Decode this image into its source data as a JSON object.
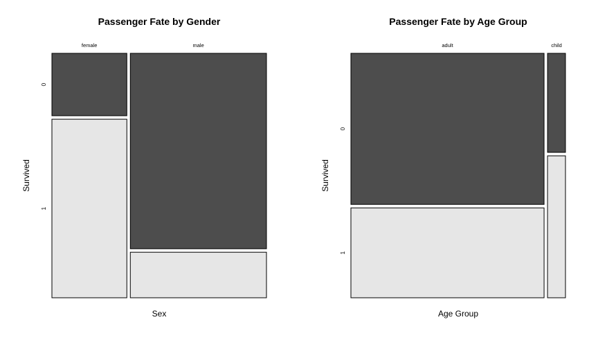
{
  "chart_data": [
    {
      "type": "mosaic",
      "title": "Passenger Fate by Gender",
      "xlabel": "Sex",
      "ylabel": "Survived",
      "categories": [
        "female",
        "male"
      ],
      "levels": [
        "0",
        "1"
      ],
      "column_share": [
        0.355,
        0.645
      ],
      "conditional_share": {
        "female": [
          0.259,
          0.741
        ],
        "male": [
          0.811,
          0.189
        ]
      },
      "colors": {
        "0": "#4d4d4d",
        "1": "#e6e6e6"
      }
    },
    {
      "type": "mosaic",
      "title": "Passenger Fate by Age Group",
      "xlabel": "Age Group",
      "ylabel": "Survived",
      "categories": [
        "adult",
        "child"
      ],
      "levels": [
        "0",
        "1"
      ],
      "column_share": [
        0.915,
        0.085
      ],
      "conditional_share": {
        "adult": [
          0.627,
          0.373
        ],
        "child": [
          0.411,
          0.589
        ]
      },
      "colors": {
        "0": "#4d4d4d",
        "1": "#e6e6e6"
      }
    }
  ]
}
